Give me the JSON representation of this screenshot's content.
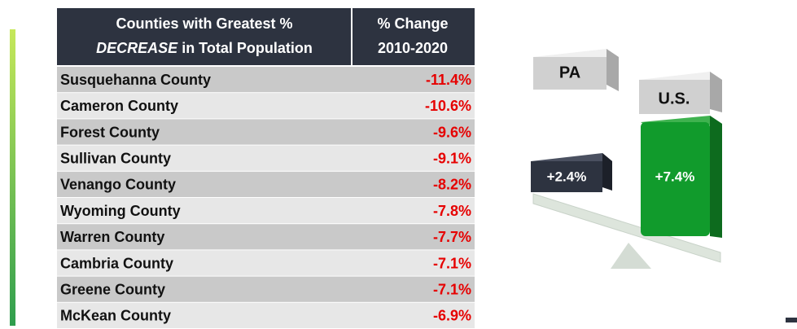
{
  "table": {
    "header": {
      "county": {
        "line1": "Counties with Greatest %",
        "emphasis": "DECREASE",
        "line2_rest": "in Total Population"
      },
      "change": {
        "line1": "% Change",
        "line2": "2010-2020"
      }
    },
    "rows": [
      [
        "Susquehanna County",
        "-11.4%"
      ],
      [
        "Cameron County",
        "-10.6%"
      ],
      [
        "Forest County",
        "-9.6%"
      ],
      [
        "Sullivan County",
        "-9.1%"
      ],
      [
        "Venango County",
        "-8.2%"
      ],
      [
        "Wyoming County",
        "-7.8%"
      ],
      [
        "Warren County",
        "-7.7%"
      ],
      [
        "Cambria County",
        "-7.1%"
      ],
      [
        "Greene County",
        "-7.1%"
      ],
      [
        "McKean County",
        "-6.9%"
      ]
    ]
  },
  "graphic": {
    "pa_label": "PA",
    "us_label": "U.S.",
    "pa_value": "+2.4%",
    "us_value": "+7.4%"
  }
}
